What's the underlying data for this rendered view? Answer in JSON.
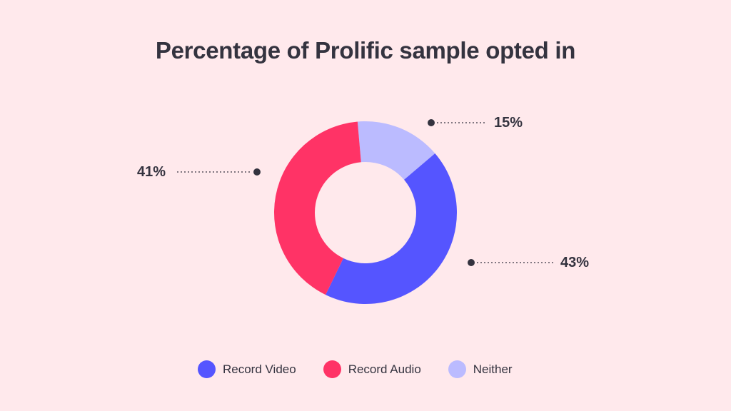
{
  "chart_data": {
    "type": "pie",
    "variant": "donut",
    "title": "Percentage of Prolific sample opted in",
    "slices": [
      {
        "name": "Neither",
        "value": 15,
        "label": "15%",
        "color": "#BBBBFF"
      },
      {
        "name": "Record Video",
        "value": 43,
        "label": "43%",
        "color": "#5555FF"
      },
      {
        "name": "Record Audio",
        "value": 41,
        "label": "41%",
        "color": "#FF3366"
      }
    ],
    "legend": {
      "placement": "bottom",
      "entries": [
        "Record Video",
        "Record Audio",
        "Neither"
      ]
    }
  },
  "colors": {
    "background": "#FFE9EC",
    "text": "#34333F"
  }
}
